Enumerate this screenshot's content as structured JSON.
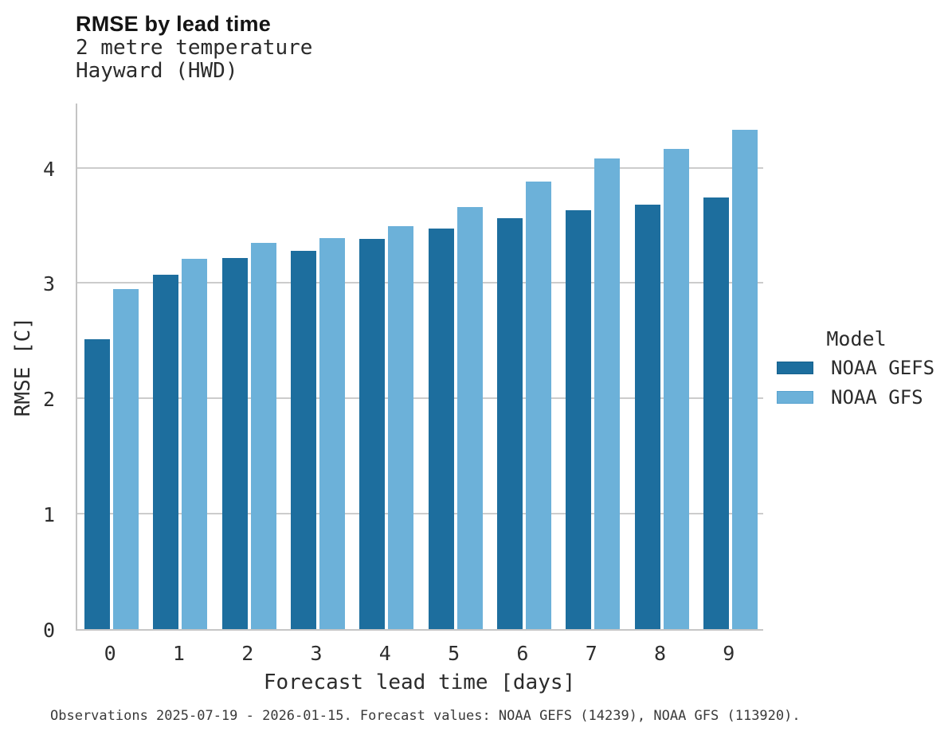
{
  "chart_data": {
    "type": "bar",
    "title": "RMSE by lead time",
    "subtitle_lines": [
      "2 metre temperature",
      "Hayward (HWD)"
    ],
    "xlabel": "Forecast lead time [days]",
    "ylabel": "RMSE [C]",
    "categories": [
      "0",
      "1",
      "2",
      "3",
      "4",
      "5",
      "6",
      "7",
      "8",
      "9"
    ],
    "series": [
      {
        "name": "NOAA GEFS",
        "color": "#1d6e9e",
        "edge_color": "#16618d",
        "values": [
          2.51,
          3.07,
          3.22,
          3.28,
          3.38,
          3.47,
          3.56,
          3.63,
          3.68,
          3.74
        ]
      },
      {
        "name": "NOAA GFS",
        "color": "#6cb1d9",
        "edge_color": "#58a2cf",
        "values": [
          2.95,
          3.21,
          3.35,
          3.39,
          3.49,
          3.66,
          3.88,
          4.08,
          4.16,
          4.33
        ]
      }
    ],
    "yticks": [
      0,
      1,
      2,
      3,
      4
    ],
    "ylim": [
      0,
      4.57
    ],
    "grid": true,
    "gridline_color": "#cccccc",
    "legend_title": "Model",
    "legend_position": "right",
    "caption": "Observations 2025-07-19 - 2026-01-15. Forecast values: NOAA GEFS (14239), NOAA GFS (113920)."
  }
}
